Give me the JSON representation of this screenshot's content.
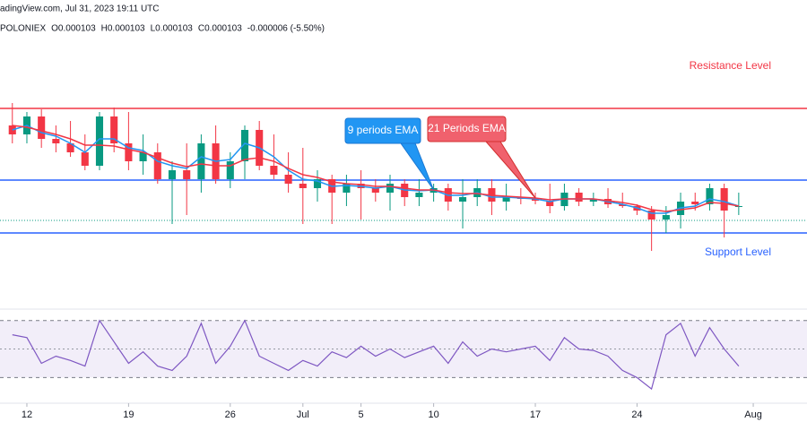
{
  "header": {
    "source": "adingView.com, Jul 31, 2023 19:11 UTC",
    "exchange": "POLONIEX",
    "ohlc": [
      "O0.000103",
      "H0.000103",
      "L0.000103",
      "C0.000103",
      "-0.000006 (-5.50%)"
    ]
  },
  "chart_data": [
    {
      "type": "candlestick",
      "x": [
        -1,
        0,
        1,
        2,
        3,
        4,
        5,
        6,
        7,
        8,
        9,
        10,
        11,
        12,
        13,
        14,
        15,
        16,
        17,
        18,
        19,
        20,
        21,
        22,
        23,
        24,
        25,
        26,
        27,
        28,
        29,
        30,
        31,
        32,
        33,
        34,
        35,
        36,
        37,
        38,
        39,
        40,
        41,
        42,
        43,
        44,
        45,
        46,
        47,
        48,
        49
      ],
      "open": [
        0.000112,
        0.000111,
        0.000113,
        0.0001105,
        0.00011,
        0.000109,
        0.0001075,
        0.000113,
        0.00011,
        0.000108,
        0.000109,
        0.000106,
        0.000107,
        0.000106,
        0.00011,
        0.000106,
        0.000108,
        0.0001115,
        0.0001075,
        0.0001065,
        0.0001055,
        0.000105,
        0.000106,
        0.0001045,
        0.0001055,
        0.000105,
        0.0001045,
        0.0001055,
        0.000104,
        0.0001045,
        0.000105,
        0.0001035,
        0.000104,
        0.000105,
        0.0001035,
        0.000104,
        0.0001038,
        0.0001036,
        0.000103,
        0.0001045,
        0.0001035,
        0.0001038,
        0.0001032,
        0.000103,
        0.0001025,
        0.0001015,
        0.000102,
        0.0001035,
        0.0001032,
        0.000105,
        0.000103
      ],
      "high": [
        0.0001145,
        0.0001135,
        0.0001138,
        0.000112,
        0.0001125,
        0.000111,
        0.0001135,
        0.000114,
        0.0001135,
        0.000111,
        0.00011,
        0.000108,
        0.00011,
        0.000111,
        0.000112,
        0.000109,
        0.000112,
        0.0001125,
        0.000111,
        0.000109,
        0.0001095,
        0.000107,
        0.0001065,
        0.0001065,
        0.000107,
        0.000106,
        0.0001065,
        0.000106,
        0.000106,
        0.0001055,
        0.0001055,
        0.000106,
        0.000106,
        0.000106,
        0.0001055,
        0.000105,
        0.0001045,
        0.0001055,
        0.0001055,
        0.000105,
        0.0001045,
        0.000105,
        0.0001045,
        0.0001032,
        0.000103,
        0.000103,
        0.0001045,
        0.0001045,
        0.0001055,
        0.0001055,
        0.0001045
      ],
      "low": [
        0.00011,
        0.00011,
        0.0001095,
        0.000109,
        0.0001085,
        0.000107,
        0.000107,
        0.000109,
        0.000107,
        0.0001065,
        0.0001055,
        0.000101,
        0.000102,
        0.0001045,
        0.0001055,
        0.000105,
        0.000106,
        0.000107,
        0.000106,
        0.0001045,
        0.000101,
        0.0001035,
        0.000101,
        0.000103,
        0.0001015,
        0.0001035,
        0.0001025,
        0.000103,
        0.000103,
        0.0001035,
        0.0001025,
        0.0001005,
        0.000103,
        0.000102,
        0.0001025,
        0.0001032,
        0.0001032,
        0.0001022,
        0.0001025,
        0.000103,
        0.000103,
        0.0001028,
        0.0001028,
        0.000102,
        9.8e-05,
        0.0001,
        0.0001005,
        0.0001025,
        0.0001025,
        9.95e-05,
        0.000102
      ],
      "close": [
        0.000111,
        0.000113,
        0.0001105,
        0.00011,
        0.000109,
        0.0001075,
        0.000113,
        0.00011,
        0.000108,
        0.000109,
        0.000106,
        0.000107,
        0.000106,
        0.00011,
        0.000106,
        0.000108,
        0.0001115,
        0.0001075,
        0.0001065,
        0.0001055,
        0.000105,
        0.000106,
        0.0001045,
        0.0001055,
        0.000105,
        0.0001045,
        0.0001055,
        0.000104,
        0.0001045,
        0.000105,
        0.0001035,
        0.000104,
        0.000105,
        0.0001035,
        0.000104,
        0.0001038,
        0.0001036,
        0.000103,
        0.0001045,
        0.0001035,
        0.0001038,
        0.0001032,
        0.000103,
        0.0001025,
        0.0001015,
        0.000102,
        0.0001035,
        0.0001032,
        0.000105,
        0.0001025,
        0.000103
      ],
      "up_color": "#089981",
      "down_color": "#f23645",
      "series": [
        {
          "color": "#2196f3",
          "values": [
            0.0001115,
            0.000112,
            0.0001112,
            0.0001108,
            0.00011,
            0.000109,
            0.0001105,
            0.0001105,
            0.0001095,
            0.0001092,
            0.000108,
            0.0001075,
            0.0001072,
            0.0001085,
            0.000108,
            0.0001082,
            0.00011,
            0.0001095,
            0.0001085,
            0.000107,
            0.000106,
            0.0001058,
            0.0001052,
            0.0001053,
            0.0001052,
            0.000105,
            0.0001052,
            0.0001048,
            0.0001047,
            0.0001048,
            0.0001042,
            0.0001042,
            0.0001045,
            0.000104,
            0.000104,
            0.0001039,
            0.0001038,
            0.0001035,
            0.0001038,
            0.0001038,
            0.0001038,
            0.0001035,
            0.0001032,
            0.0001028,
            0.0001022,
            0.0001022,
            0.0001028,
            0.000103,
            0.0001038,
            0.0001035,
            0.000103
          ]
        },
        {
          "color": "#f23645",
          "values": [
            0.000112,
            0.0001118,
            0.0001114,
            0.000111,
            0.0001105,
            0.0001098,
            0.0001098,
            0.0001097,
            0.0001093,
            0.000109,
            0.0001084,
            0.0001078,
            0.0001074,
            0.0001077,
            0.0001075,
            0.0001075,
            0.0001082,
            0.0001084,
            0.000108,
            0.0001072,
            0.0001065,
            0.0001062,
            0.0001057,
            0.0001055,
            0.0001054,
            0.0001052,
            0.0001052,
            0.000105,
            0.0001048,
            0.0001048,
            0.0001045,
            0.0001044,
            0.0001044,
            0.0001042,
            0.0001041,
            0.000104,
            0.0001039,
            0.0001037,
            0.0001038,
            0.0001038,
            0.0001038,
            0.0001036,
            0.0001034,
            0.0001031,
            0.0001026,
            0.0001024,
            0.0001026,
            0.0001028,
            0.0001034,
            0.0001033,
            0.000103
          ]
        }
      ],
      "levels": [
        {
          "value": 0.0001139,
          "color": "#f23645",
          "label": "Resistance Level"
        },
        {
          "value": 0.0001059,
          "color": "#2962ff"
        },
        {
          "value": 0.0001,
          "color": "#2962ff",
          "label": "Support Level"
        }
      ],
      "price_line": {
        "value": 0.0001014,
        "color": "#089981"
      },
      "annotations": [
        {
          "text": "9 periods EMA",
          "series": 0,
          "x": 28,
          "color": "#2196f3"
        },
        {
          "text": "21 Periods EMA",
          "series": 1,
          "x": 35,
          "color": "#f0616d"
        }
      ],
      "xlim": [
        -1.85,
        53.7
      ],
      "ylim": [
        9.15e-05,
        0.000126
      ],
      "xticks": [
        {
          "value": 0,
          "label": "12"
        },
        {
          "value": 7,
          "label": "19"
        },
        {
          "value": 14,
          "label": "26"
        },
        {
          "value": 19,
          "label": "Jul"
        },
        {
          "value": 23,
          "label": "5"
        },
        {
          "value": 28,
          "label": "10"
        },
        {
          "value": 35,
          "label": "17"
        },
        {
          "value": 42,
          "label": "24"
        },
        {
          "value": 50,
          "label": "Aug"
        }
      ]
    },
    {
      "type": "line",
      "x": [
        -1,
        0,
        1,
        2,
        3,
        4,
        5,
        6,
        7,
        8,
        9,
        10,
        11,
        12,
        13,
        14,
        15,
        16,
        17,
        18,
        19,
        20,
        21,
        22,
        23,
        24,
        25,
        26,
        27,
        28,
        29,
        30,
        31,
        32,
        33,
        34,
        35,
        36,
        37,
        38,
        39,
        40,
        41,
        42,
        43,
        44,
        45,
        46,
        47,
        48,
        49
      ],
      "series": [
        {
          "color": "#7e57c2",
          "values": [
            60,
            58,
            40,
            45,
            42,
            38,
            70,
            55,
            40,
            48,
            38,
            35,
            45,
            68,
            40,
            52,
            70,
            45,
            40,
            35,
            42,
            38,
            48,
            44,
            52,
            45,
            50,
            44,
            48,
            52,
            40,
            55,
            45,
            50,
            48,
            50,
            52,
            42,
            58,
            50,
            49,
            45,
            35,
            30,
            22,
            60,
            68,
            45,
            65,
            50,
            38
          ]
        }
      ],
      "band": [
        30,
        70
      ],
      "midline": 50,
      "xlim": [
        -1.85,
        53.7
      ],
      "ylim": [
        12,
        78
      ]
    }
  ]
}
